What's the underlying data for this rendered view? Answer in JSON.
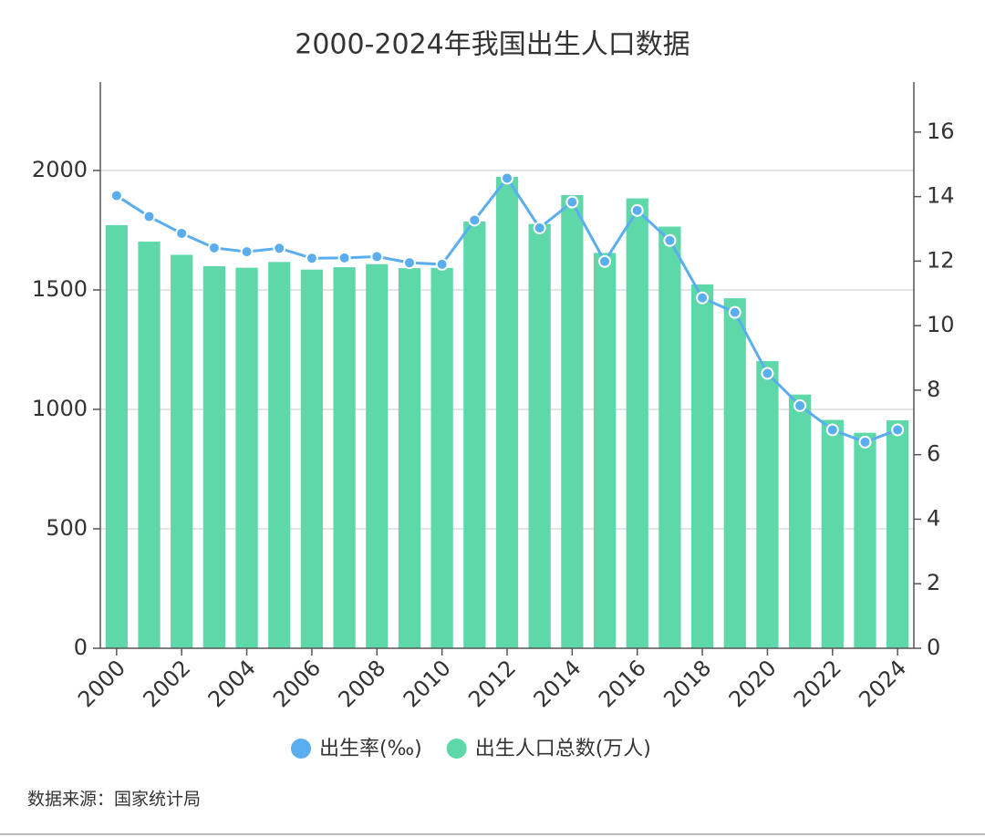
{
  "chart_data": {
    "type": "bar",
    "title": "2000-2024年我国出生人口数据",
    "x": [
      2000,
      2001,
      2002,
      2003,
      2004,
      2005,
      2006,
      2007,
      2008,
      2009,
      2010,
      2011,
      2012,
      2013,
      2014,
      2015,
      2016,
      2017,
      2018,
      2019,
      2020,
      2021,
      2022,
      2023,
      2024
    ],
    "xlim": [
      1999.5,
      2024.5
    ],
    "xticks": [
      2000,
      2002,
      2004,
      2006,
      2008,
      2010,
      2012,
      2014,
      2016,
      2018,
      2020,
      2022,
      2024
    ],
    "ylim": [
      0,
      2370
    ],
    "yticks": [
      0,
      500,
      1000,
      1500,
      2000
    ],
    "y2lim": [
      0,
      17.55
    ],
    "y2ticks": [
      0,
      2,
      4,
      6,
      8,
      10,
      12,
      14,
      16
    ],
    "grid": true,
    "legend": "bottom",
    "series": [
      {
        "name": "出生率(‰)",
        "type": "line",
        "axis": "y2",
        "color": "#5aaeef",
        "values": [
          14.03,
          13.38,
          12.86,
          12.41,
          12.29,
          12.4,
          12.09,
          12.1,
          12.14,
          11.95,
          11.9,
          13.27,
          14.57,
          13.03,
          13.83,
          11.99,
          13.57,
          12.64,
          10.86,
          10.41,
          8.52,
          7.52,
          6.77,
          6.39,
          6.77
        ]
      },
      {
        "name": "出生人口总数(万人)",
        "type": "bar",
        "color": "#5fd8a9",
        "values": [
          1771,
          1702,
          1647,
          1599,
          1593,
          1617,
          1585,
          1595,
          1608,
          1591,
          1592,
          1786,
          1973,
          1776,
          1897,
          1655,
          1883,
          1765,
          1523,
          1465,
          1202,
          1062,
          956,
          902,
          954
        ]
      }
    ]
  },
  "source": "数据来源：国家统计局"
}
